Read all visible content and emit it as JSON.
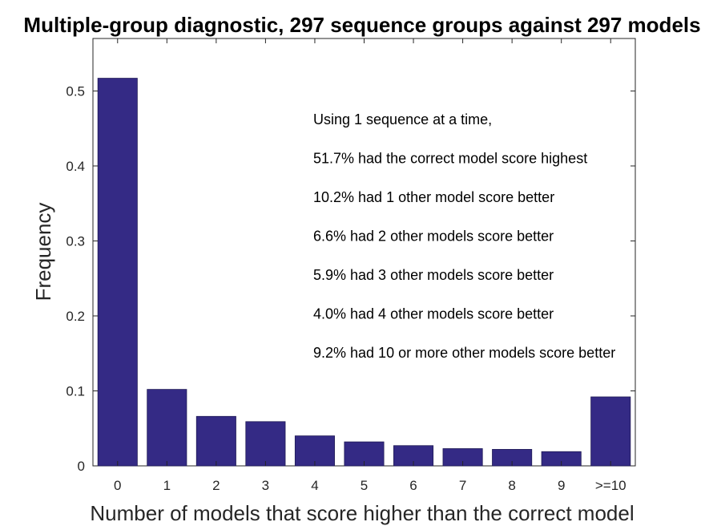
{
  "chart_data": {
    "type": "bar",
    "title": "Multiple-group diagnostic, 297 sequence groups against 297 models",
    "xlabel": "Number of models that score higher than the correct model",
    "ylabel": "Frequency",
    "categories": [
      "0",
      "1",
      "2",
      "3",
      "4",
      "5",
      "6",
      "7",
      "8",
      "9",
      ">=10"
    ],
    "values": [
      0.517,
      0.102,
      0.066,
      0.059,
      0.04,
      0.032,
      0.027,
      0.023,
      0.022,
      0.019,
      0.092
    ],
    "ylim": [
      0,
      0.57
    ],
    "yticks": [
      0,
      0.1,
      0.2,
      0.3,
      0.4,
      0.5
    ],
    "ytick_labels": [
      "0",
      "0.1",
      "0.2",
      "0.3",
      "0.4",
      "0.5"
    ],
    "bar_color": "#342a85",
    "grid": false,
    "annotations": [
      "Using 1 sequence at a time,",
      "51.7% had the correct model score highest",
      "10.2% had 1 other model score better",
      "6.6% had 2 other models score better",
      "5.9% had 3 other models score better",
      "4.0% had 4 other models score better",
      "9.2% had 10 or more other models score better"
    ]
  }
}
